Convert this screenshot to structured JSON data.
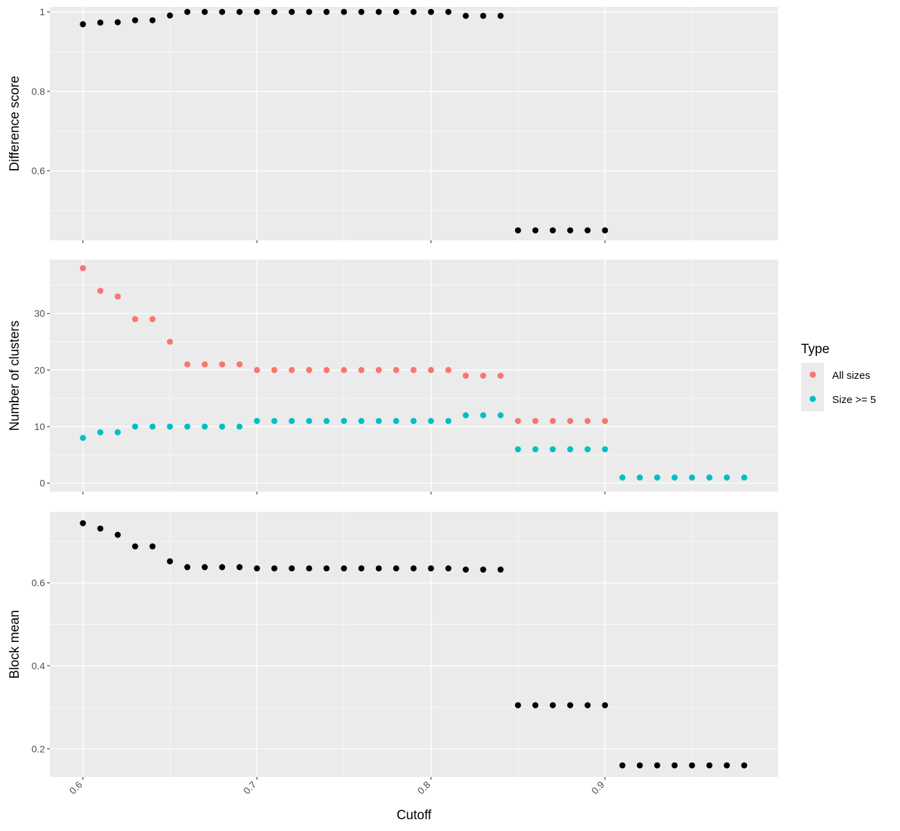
{
  "chart_data": [
    {
      "type": "scatter",
      "ylabel": "Difference score",
      "yticks": [
        0.6,
        0.8,
        1.0
      ],
      "ylim": [
        0.425,
        1.0125
      ],
      "series": [
        {
          "x": [
            0.6,
            0.61,
            0.62,
            0.63,
            0.64,
            0.65,
            0.66,
            0.67,
            0.68,
            0.69,
            0.7,
            0.71,
            0.72,
            0.73,
            0.74,
            0.75,
            0.76,
            0.77,
            0.78,
            0.79,
            0.8,
            0.81,
            0.82,
            0.83,
            0.84,
            0.85,
            0.86,
            0.87,
            0.88,
            0.89,
            0.9
          ],
          "y": [
            0.969,
            0.973,
            0.974,
            0.979,
            0.979,
            0.991,
            1.0,
            1.0,
            1.0,
            1.0,
            1.0,
            1.0,
            1.0,
            1.0,
            1.0,
            1.0,
            1.0,
            1.0,
            1.0,
            1.0,
            1.0,
            1.0,
            0.99,
            0.99,
            0.99,
            0.45,
            0.45,
            0.45,
            0.45,
            0.45,
            0.45
          ],
          "color": "#000000"
        }
      ]
    },
    {
      "type": "scatter",
      "ylabel": "Number of clusters",
      "yticks": [
        0,
        10,
        20,
        30
      ],
      "ylim": [
        -1.5,
        39.5
      ],
      "legend_title": "Type",
      "legend_position": "right",
      "series": [
        {
          "name": "All sizes",
          "color": "#F8766D",
          "x": [
            0.6,
            0.61,
            0.62,
            0.63,
            0.64,
            0.65,
            0.66,
            0.67,
            0.68,
            0.69,
            0.7,
            0.71,
            0.72,
            0.73,
            0.74,
            0.75,
            0.76,
            0.77,
            0.78,
            0.79,
            0.8,
            0.81,
            0.82,
            0.83,
            0.84,
            0.85,
            0.86,
            0.87,
            0.88,
            0.89,
            0.9
          ],
          "y": [
            38,
            34,
            33,
            29,
            29,
            25,
            21,
            21,
            21,
            21,
            20,
            20,
            20,
            20,
            20,
            20,
            20,
            20,
            20,
            20,
            20,
            20,
            19,
            19,
            19,
            11,
            11,
            11,
            11,
            11,
            11
          ]
        },
        {
          "name": "Size >= 5",
          "color": "#00BFC4",
          "x": [
            0.6,
            0.61,
            0.62,
            0.63,
            0.64,
            0.65,
            0.66,
            0.67,
            0.68,
            0.69,
            0.7,
            0.71,
            0.72,
            0.73,
            0.74,
            0.75,
            0.76,
            0.77,
            0.78,
            0.79,
            0.8,
            0.81,
            0.82,
            0.83,
            0.84,
            0.85,
            0.86,
            0.87,
            0.88,
            0.89,
            0.9,
            0.91,
            0.92,
            0.93,
            0.94,
            0.95,
            0.96,
            0.97,
            0.98
          ],
          "y": [
            8,
            9,
            9,
            10,
            10,
            10,
            10,
            10,
            10,
            10,
            11,
            11,
            11,
            11,
            11,
            11,
            11,
            11,
            11,
            11,
            11,
            11,
            12,
            12,
            12,
            6,
            6,
            6,
            6,
            6,
            6,
            1,
            1,
            1,
            1,
            1,
            1,
            1,
            1
          ]
        }
      ]
    },
    {
      "type": "scatter",
      "ylabel": "Block mean",
      "xlabel": "Cutoff",
      "xticks": [
        "0.6",
        "0.7",
        "0.8",
        "0.9"
      ],
      "xlim": [
        0.581,
        0.9995
      ],
      "yticks": [
        0.2,
        0.4,
        0.6
      ],
      "ylim": [
        0.132,
        0.7715
      ],
      "series": [
        {
          "color": "#000000",
          "x": [
            0.6,
            0.61,
            0.62,
            0.63,
            0.64,
            0.65,
            0.66,
            0.67,
            0.68,
            0.69,
            0.7,
            0.71,
            0.72,
            0.73,
            0.74,
            0.75,
            0.76,
            0.77,
            0.78,
            0.79,
            0.8,
            0.81,
            0.82,
            0.83,
            0.84,
            0.85,
            0.86,
            0.87,
            0.88,
            0.89,
            0.9,
            0.91,
            0.92,
            0.93,
            0.94,
            0.95,
            0.96,
            0.97,
            0.98
          ],
          "y": [
            0.744,
            0.731,
            0.716,
            0.688,
            0.688,
            0.652,
            0.638,
            0.638,
            0.638,
            0.638,
            0.635,
            0.635,
            0.635,
            0.635,
            0.635,
            0.635,
            0.635,
            0.635,
            0.635,
            0.635,
            0.635,
            0.635,
            0.632,
            0.632,
            0.632,
            0.305,
            0.305,
            0.305,
            0.305,
            0.305,
            0.305,
            0.16,
            0.16,
            0.16,
            0.16,
            0.16,
            0.16,
            0.16,
            0.16
          ]
        }
      ]
    }
  ],
  "colors": {
    "panel_background": "#EBEBEB",
    "grid": "#FFFFFF",
    "all_sizes": "#F8766D",
    "size_ge_5": "#00BFC4"
  }
}
